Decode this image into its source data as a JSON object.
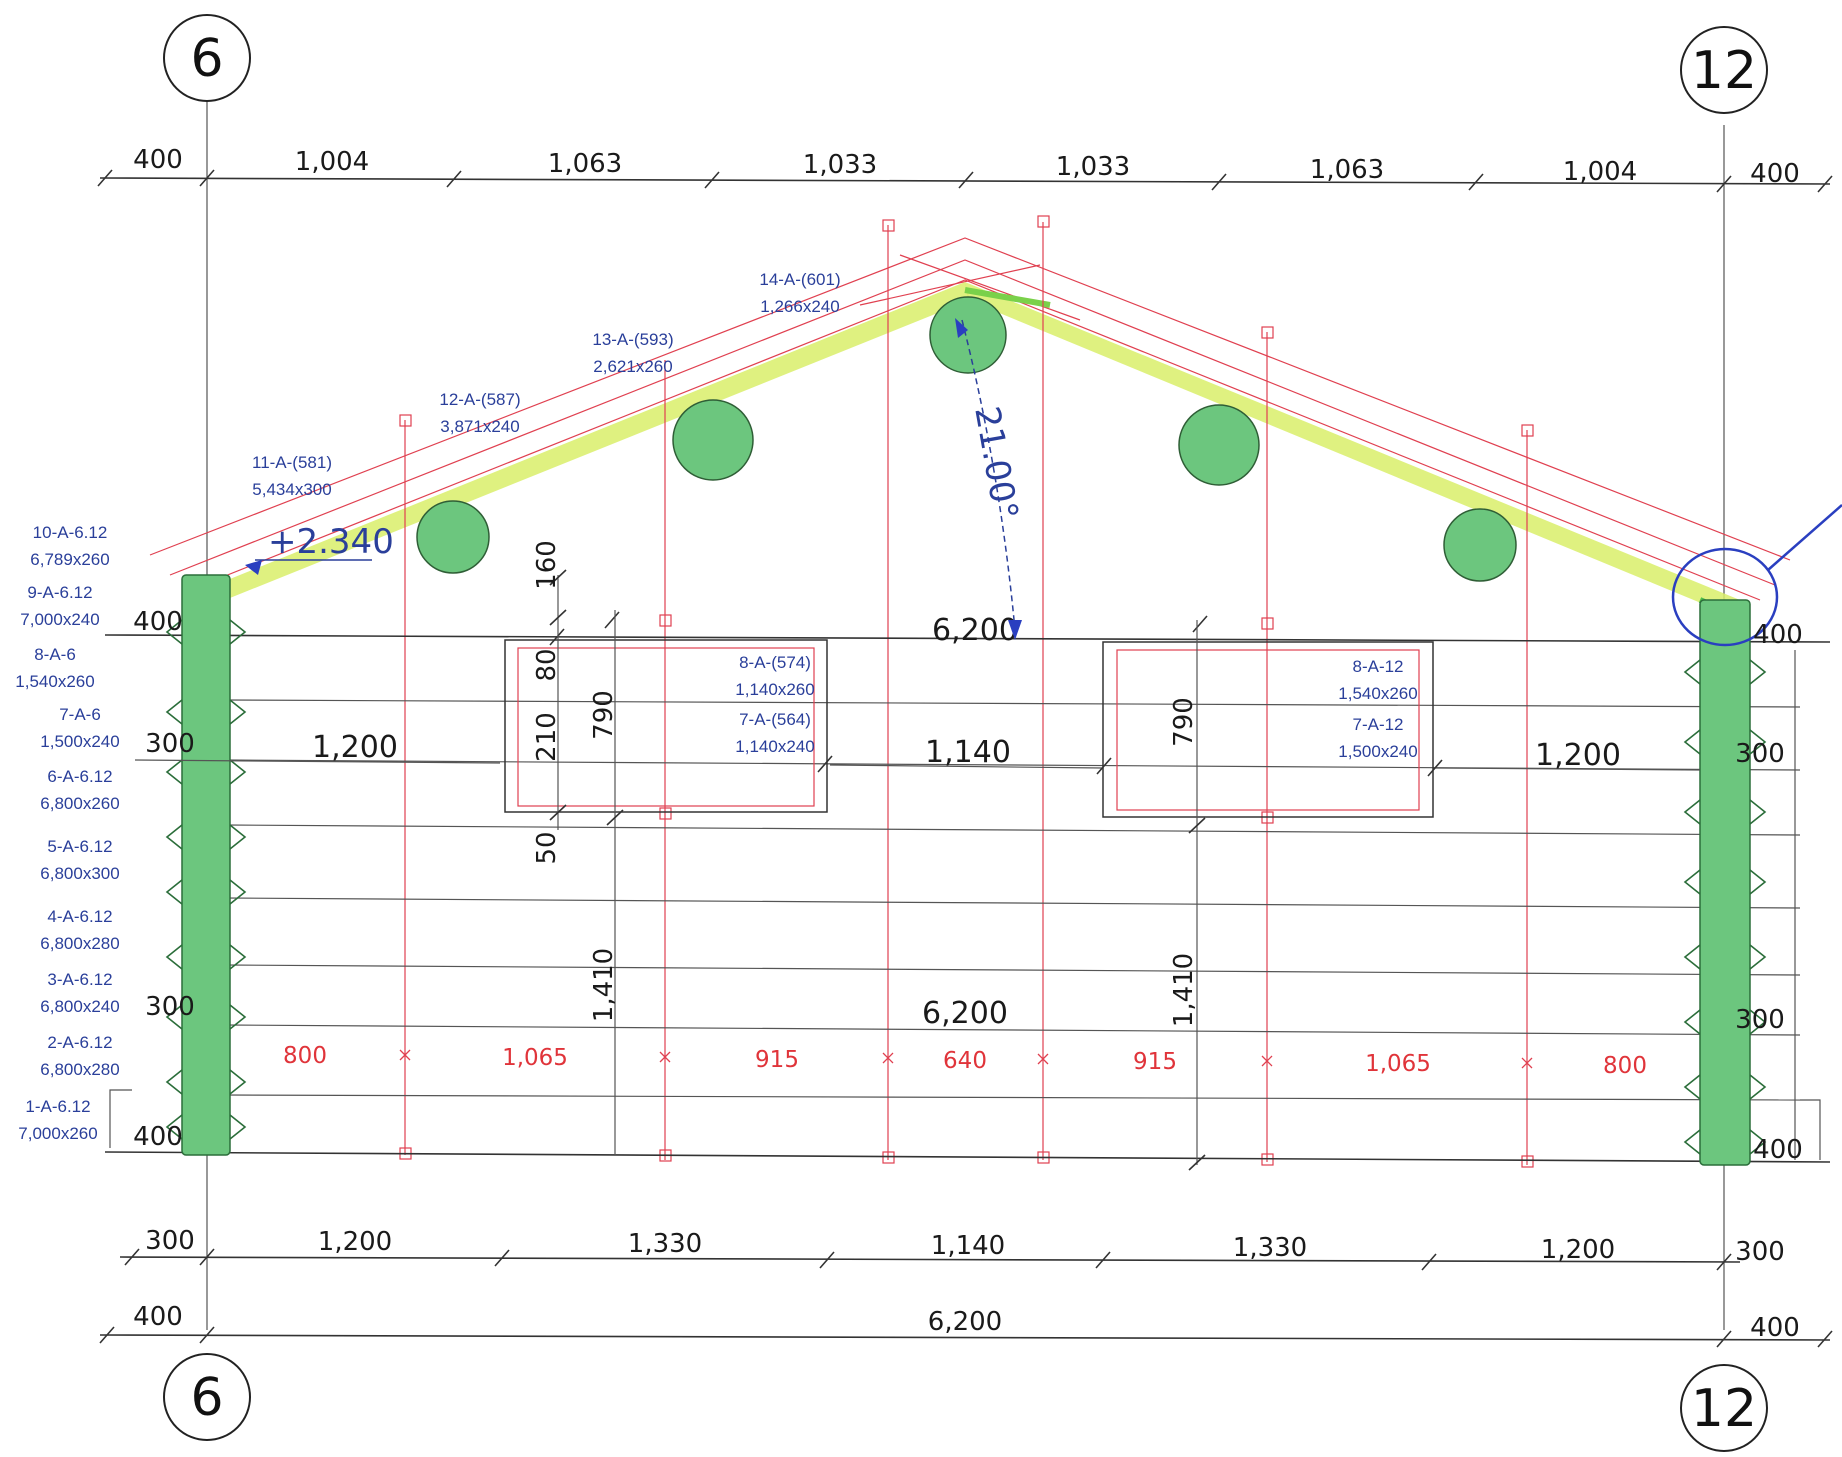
{
  "axes": {
    "left": "6",
    "right": "12"
  },
  "top_dims": [
    "400",
    "1,004",
    "1,063",
    "1,033",
    "1,033",
    "1,063",
    "1,004",
    "400"
  ],
  "bottom_dims_1": [
    "300",
    "1,200",
    "1,330",
    "1,140",
    "1,330",
    "1,200",
    "300"
  ],
  "bottom_dims_2": [
    "400",
    "6,200",
    "400"
  ],
  "left_side_dims": [
    "400",
    "300",
    "300",
    "400"
  ],
  "right_side_dims": [
    "400",
    "300",
    "300",
    "400"
  ],
  "inner_dims": {
    "top_width": "6,200",
    "floor_width": "6,200",
    "window_left_w": "1,200",
    "window_mid_w": "1,140",
    "window_right_w": "1,200",
    "h_160": "160",
    "h_80": "80",
    "h_210": "210",
    "h_790_left": "790",
    "h_790_right": "790",
    "h_50": "50",
    "h_1410_left": "1,410",
    "h_1410_right": "1,410"
  },
  "red_dims": [
    "800",
    "1,065",
    "915",
    "640",
    "915",
    "1,065",
    "800"
  ],
  "elevation": "+2.340",
  "angle": "21.00°",
  "rafter_labels": [
    {
      "code": "14-A-(601)",
      "size": "1,266x240"
    },
    {
      "code": "13-A-(593)",
      "size": "2,621x260"
    },
    {
      "code": "12-A-(587)",
      "size": "3,871x240"
    },
    {
      "code": "11-A-(581)",
      "size": "5,434x300"
    }
  ],
  "log_labels": [
    {
      "code": "10-A-6.12",
      "size": "6,789x260"
    },
    {
      "code": "9-A-6.12",
      "size": "7,000x240"
    },
    {
      "code": "8-A-6",
      "size": "1,540x260"
    },
    {
      "code": "7-A-6",
      "size": "1,500x240"
    },
    {
      "code": "6-A-6.12",
      "size": "6,800x260"
    },
    {
      "code": "5-A-6.12",
      "size": "6,800x300"
    },
    {
      "code": "4-A-6.12",
      "size": "6,800x280"
    },
    {
      "code": "3-A-6.12",
      "size": "6,800x240"
    },
    {
      "code": "2-A-6.12",
      "size": "6,800x280"
    },
    {
      "code": "1-A-6.12",
      "size": "7,000x260"
    }
  ],
  "window_labels": [
    {
      "code": "8-A-(574)",
      "size": "1,140x260"
    },
    {
      "code": "7-A-(564)",
      "size": "1,140x240"
    },
    {
      "code": "8-A-12",
      "size": "1,540x260"
    },
    {
      "code": "7-A-12",
      "size": "1,500x240"
    }
  ],
  "colors": {
    "logs": "#6cc67e",
    "red_lines": "#e04050",
    "labels": "#2a3f9a",
    "rafter_highlight": "#d9ef6a"
  }
}
